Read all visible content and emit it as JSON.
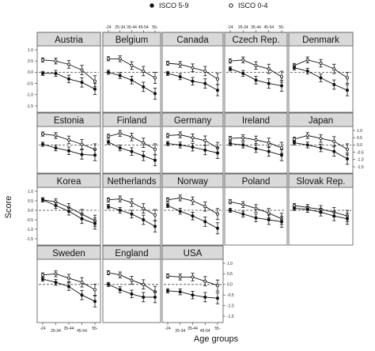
{
  "chart_data": {
    "type": "line",
    "xlabel": "Age groups",
    "ylabel": "Score",
    "categories": [
      "-24",
      "25-34",
      "35-44",
      "45-54",
      "55-"
    ],
    "ylim": [
      -1.5,
      1.0
    ],
    "yticks": [
      "1.0",
      "0.5",
      "0.0",
      "-0.5",
      "-1.0",
      "-1.5"
    ],
    "legend": [
      {
        "name": "ISCO 5-9",
        "marker": "filled-circle"
      },
      {
        "name": "ISCO 0-4",
        "marker": "open-circle"
      }
    ],
    "panels": [
      {
        "title": "Austria",
        "series": [
          {
            "name": "ISCO 0-4",
            "values": [
              0.55,
              0.5,
              0.35,
              0.1,
              -0.4
            ]
          },
          {
            "name": "ISCO 5-9",
            "values": [
              -0.05,
              -0.05,
              -0.3,
              -0.45,
              -0.75
            ]
          }
        ]
      },
      {
        "title": "Belgium",
        "series": [
          {
            "name": "ISCO 0-4",
            "values": [
              0.6,
              0.6,
              0.3,
              0.05,
              -0.25
            ]
          },
          {
            "name": "ISCO 5-9",
            "values": [
              0.0,
              -0.15,
              -0.35,
              -0.65,
              -0.95
            ]
          }
        ]
      },
      {
        "title": "Canada",
        "series": [
          {
            "name": "ISCO 0-4",
            "values": [
              0.4,
              0.35,
              0.2,
              0.05,
              -0.3
            ]
          },
          {
            "name": "ISCO 5-9",
            "values": [
              -0.05,
              -0.2,
              -0.4,
              -0.5,
              -0.8
            ]
          }
        ]
      },
      {
        "title": "Czech Rep.",
        "series": [
          {
            "name": "ISCO 0-4",
            "values": [
              0.5,
              0.55,
              0.3,
              0.15,
              -0.2
            ]
          },
          {
            "name": "ISCO 5-9",
            "values": [
              0.15,
              -0.05,
              -0.35,
              -0.5,
              -0.6
            ]
          }
        ]
      },
      {
        "title": "Denmark",
        "series": [
          {
            "name": "ISCO 0-4",
            "values": [
              0.3,
              0.55,
              0.4,
              0.15,
              -0.25
            ]
          },
          {
            "name": "ISCO 5-9",
            "values": [
              0.2,
              0.05,
              -0.25,
              -0.55,
              -0.8
            ]
          }
        ]
      },
      {
        "title": "Estonia",
        "series": [
          {
            "name": "ISCO 0-4",
            "values": [
              0.75,
              0.65,
              0.35,
              0.05,
              -0.3
            ]
          },
          {
            "name": "ISCO 5-9",
            "values": [
              0.05,
              -0.2,
              -0.4,
              -0.65,
              -0.7
            ]
          }
        ]
      },
      {
        "title": "Finland",
        "series": [
          {
            "name": "ISCO 0-4",
            "values": [
              0.6,
              0.8,
              0.55,
              0.15,
              -0.3
            ]
          },
          {
            "name": "ISCO 5-9",
            "values": [
              0.2,
              -0.2,
              -0.45,
              -0.75,
              -1.05
            ]
          }
        ]
      },
      {
        "title": "Germany",
        "series": [
          {
            "name": "ISCO 0-4",
            "values": [
              0.65,
              0.7,
              0.5,
              0.3,
              -0.2
            ]
          },
          {
            "name": "ISCO 5-9",
            "values": [
              0.1,
              0.0,
              -0.15,
              -0.35,
              -0.55
            ]
          }
        ]
      },
      {
        "title": "Ireland",
        "series": [
          {
            "name": "ISCO 0-4",
            "values": [
              0.45,
              0.5,
              0.35,
              0.15,
              -0.2
            ]
          },
          {
            "name": "ISCO 5-9",
            "values": [
              0.1,
              0.0,
              -0.25,
              -0.45,
              -0.7
            ]
          }
        ]
      },
      {
        "title": "Japan",
        "series": [
          {
            "name": "ISCO 0-4",
            "values": [
              0.4,
              0.65,
              0.45,
              0.25,
              -0.3
            ]
          },
          {
            "name": "ISCO 5-9",
            "values": [
              0.15,
              0.0,
              -0.2,
              -0.45,
              -0.95
            ]
          }
        ]
      },
      {
        "title": "Korea",
        "series": [
          {
            "name": "ISCO 0-4",
            "values": [
              0.55,
              0.45,
              0.15,
              -0.2,
              -0.55
            ]
          },
          {
            "name": "ISCO 5-9",
            "values": [
              0.55,
              0.25,
              -0.05,
              -0.45,
              -0.7
            ]
          }
        ]
      },
      {
        "title": "Netherlands",
        "series": [
          {
            "name": "ISCO 0-4",
            "values": [
              0.55,
              0.6,
              0.4,
              0.1,
              -0.25
            ]
          },
          {
            "name": "ISCO 5-9",
            "values": [
              0.2,
              0.0,
              -0.2,
              -0.5,
              -0.85
            ]
          }
        ]
      },
      {
        "title": "Norway",
        "series": [
          {
            "name": "ISCO 0-4",
            "values": [
              0.55,
              0.65,
              0.5,
              0.2,
              -0.2
            ]
          },
          {
            "name": "ISCO 5-9",
            "values": [
              0.25,
              -0.05,
              -0.3,
              -0.6,
              -0.95
            ]
          }
        ]
      },
      {
        "title": "Poland",
        "series": [
          {
            "name": "ISCO 0-4",
            "values": [
              0.45,
              0.3,
              0.1,
              -0.15,
              -0.45
            ]
          },
          {
            "name": "ISCO 5-9",
            "values": [
              0.0,
              -0.2,
              -0.4,
              -0.5,
              -0.6
            ]
          }
        ]
      },
      {
        "title": "Slovak Rep.",
        "series": [
          {
            "name": "ISCO 0-4",
            "values": [
              0.25,
              0.15,
              0.05,
              -0.1,
              -0.3
            ]
          },
          {
            "name": "ISCO 5-9",
            "values": [
              0.1,
              0.05,
              -0.1,
              -0.3,
              -0.45
            ]
          }
        ]
      },
      {
        "title": "Sweden",
        "series": [
          {
            "name": "ISCO 0-4",
            "values": [
              0.45,
              0.5,
              0.3,
              0.1,
              -0.25
            ]
          },
          {
            "name": "ISCO 5-9",
            "values": [
              0.25,
              0.1,
              -0.1,
              -0.5,
              -0.8
            ]
          }
        ]
      },
      {
        "title": "England",
        "series": [
          {
            "name": "ISCO 0-4",
            "values": [
              0.55,
              0.45,
              0.2,
              0.0,
              -0.35
            ]
          },
          {
            "name": "ISCO 5-9",
            "values": [
              0.0,
              -0.25,
              -0.45,
              -0.6,
              -0.6
            ]
          }
        ]
      },
      {
        "title": "USA",
        "series": [
          {
            "name": "ISCO 0-4",
            "values": [
              0.4,
              0.35,
              0.35,
              0.15,
              -0.05
            ]
          },
          {
            "name": "ISCO 5-9",
            "values": [
              -0.3,
              -0.35,
              -0.5,
              -0.6,
              -0.65
            ]
          }
        ]
      }
    ]
  }
}
